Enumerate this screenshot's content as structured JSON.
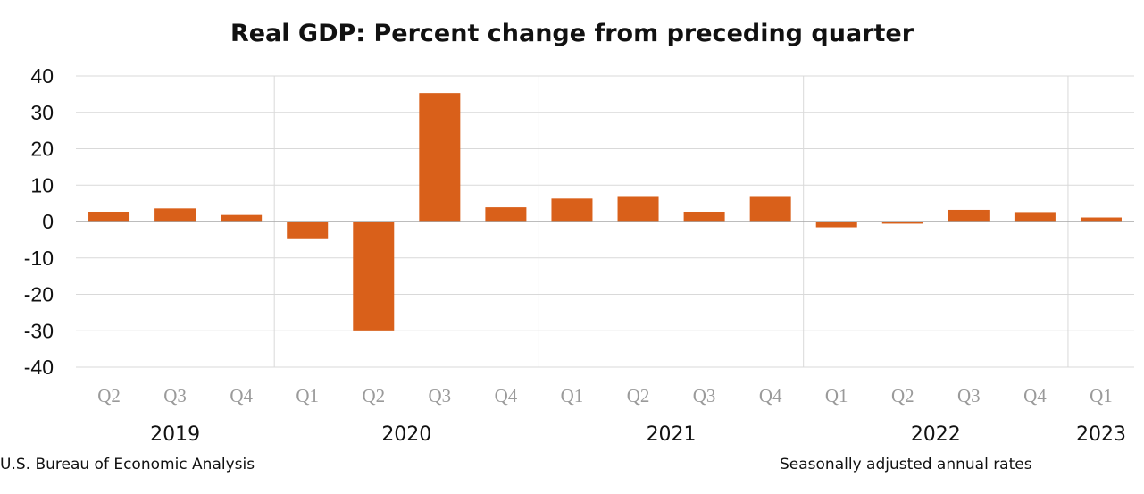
{
  "chart_data": {
    "type": "bar",
    "title": "Real GDP:  Percent change from preceding quarter",
    "categories": [
      "Q2",
      "Q3",
      "Q4",
      "Q1",
      "Q2",
      "Q3",
      "Q4",
      "Q1",
      "Q2",
      "Q3",
      "Q4",
      "Q1",
      "Q2",
      "Q3",
      "Q4",
      "Q1"
    ],
    "years": [
      {
        "label": "2019",
        "quarters": [
          "Q2",
          "Q3",
          "Q4"
        ]
      },
      {
        "label": "2020",
        "quarters": [
          "Q1",
          "Q2",
          "Q3",
          "Q4"
        ]
      },
      {
        "label": "2021",
        "quarters": [
          "Q1",
          "Q2",
          "Q3",
          "Q4"
        ]
      },
      {
        "label": "2022",
        "quarters": [
          "Q1",
          "Q2",
          "Q3",
          "Q4"
        ]
      },
      {
        "label": "2023",
        "quarters": [
          "Q1"
        ]
      }
    ],
    "series": [
      {
        "values": [
          2.7,
          3.6,
          1.8,
          -4.6,
          -29.9,
          35.3,
          3.9,
          6.3,
          7.0,
          2.7,
          7.0,
          -1.6,
          -0.6,
          3.2,
          2.6,
          1.1
        ]
      }
    ],
    "ylim": [
      -40,
      40
    ],
    "yticks": [
      -40,
      -30,
      -20,
      -10,
      0,
      10,
      20,
      30,
      40
    ],
    "ytick_labels": [
      "-40",
      "-30",
      "-20",
      "-10",
      "0",
      "10",
      "20",
      "30",
      "40"
    ],
    "xlabel": "",
    "ylabel": "",
    "grid": true,
    "colors": {
      "bar": "#D9601A",
      "grid": "#d9d9d9",
      "zero_line": "#a6a6a6",
      "quarter_text": "#9a9a9a"
    }
  },
  "footer": {
    "source": "U.S. Bureau of Economic Analysis",
    "note": "Seasonally adjusted annual rates"
  }
}
